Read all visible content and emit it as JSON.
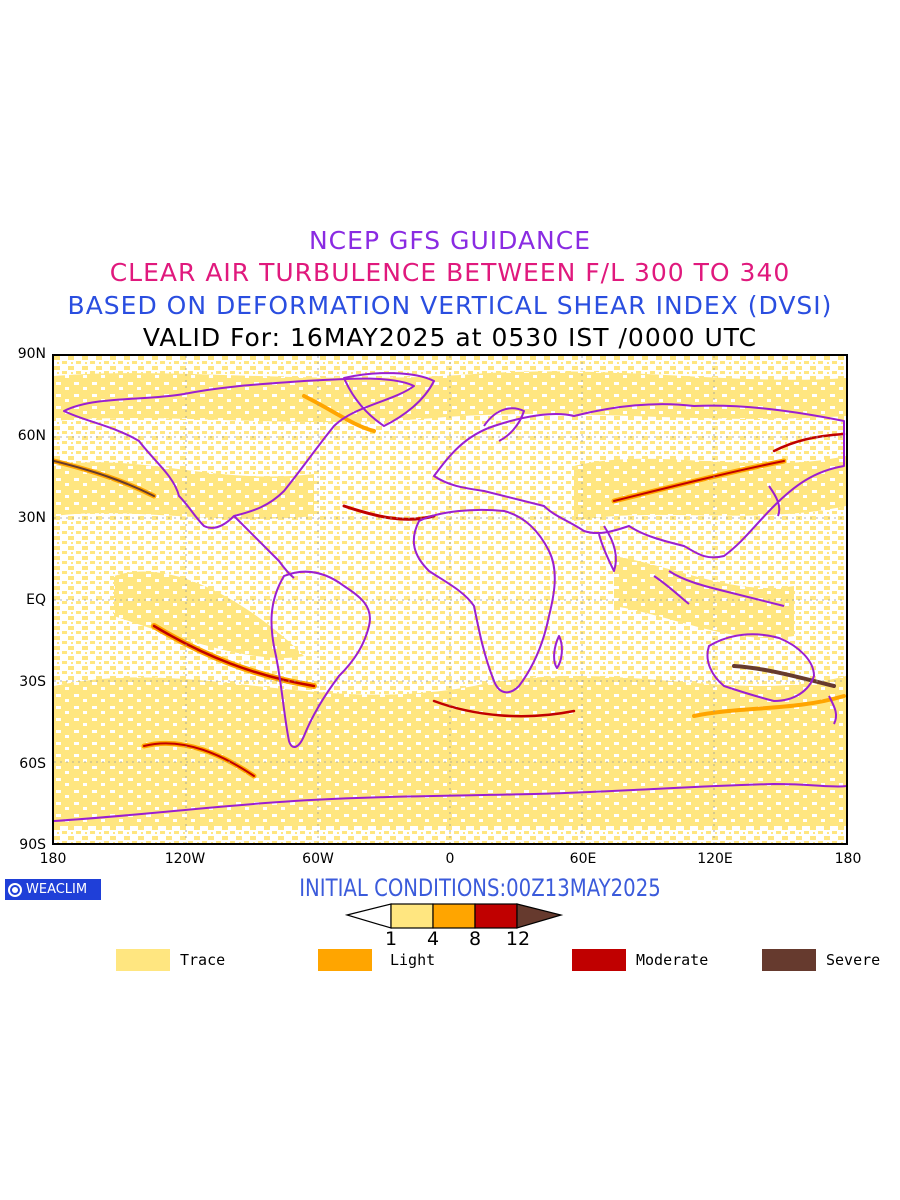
{
  "titles": {
    "line1": "NCEP GFS GUIDANCE",
    "line2": "CLEAR AIR TURBULENCE BETWEEN F/L 300 TO 340",
    "line3": "BASED ON DEFORMATION VERTICAL SHEAR INDEX (DVSI)",
    "line4": "VALID For: 16MAY2025 at 0530 IST /0000 UTC"
  },
  "colors": {
    "title1": "#8a2be2",
    "title2": "#e0197d",
    "title3": "#2a4ee0",
    "title4": "#000000",
    "trace": "#ffe680",
    "light": "#ffa500",
    "moderate": "#c00000",
    "severe": "#663a2e",
    "coast": "#9b1fd0"
  },
  "axes": {
    "lat_labels": [
      "90N",
      "60N",
      "30N",
      "EQ",
      "30S",
      "60S",
      "90S"
    ],
    "lon_labels": [
      "180",
      "120W",
      "60W",
      "0",
      "60E",
      "120E",
      "180"
    ]
  },
  "logo": {
    "text": "WEACLIM"
  },
  "initial_conditions": "INITIAL CONDITIONS:00Z13MAY2025",
  "colorbar": {
    "ticks": [
      "1",
      "4",
      "8",
      "12"
    ]
  },
  "legend": [
    {
      "label": "Trace",
      "color": "#ffe680"
    },
    {
      "label": "Light",
      "color": "#ffa500"
    },
    {
      "label": "Moderate",
      "color": "#c00000"
    },
    {
      "label": "Severe",
      "color": "#663a2e"
    }
  ]
}
